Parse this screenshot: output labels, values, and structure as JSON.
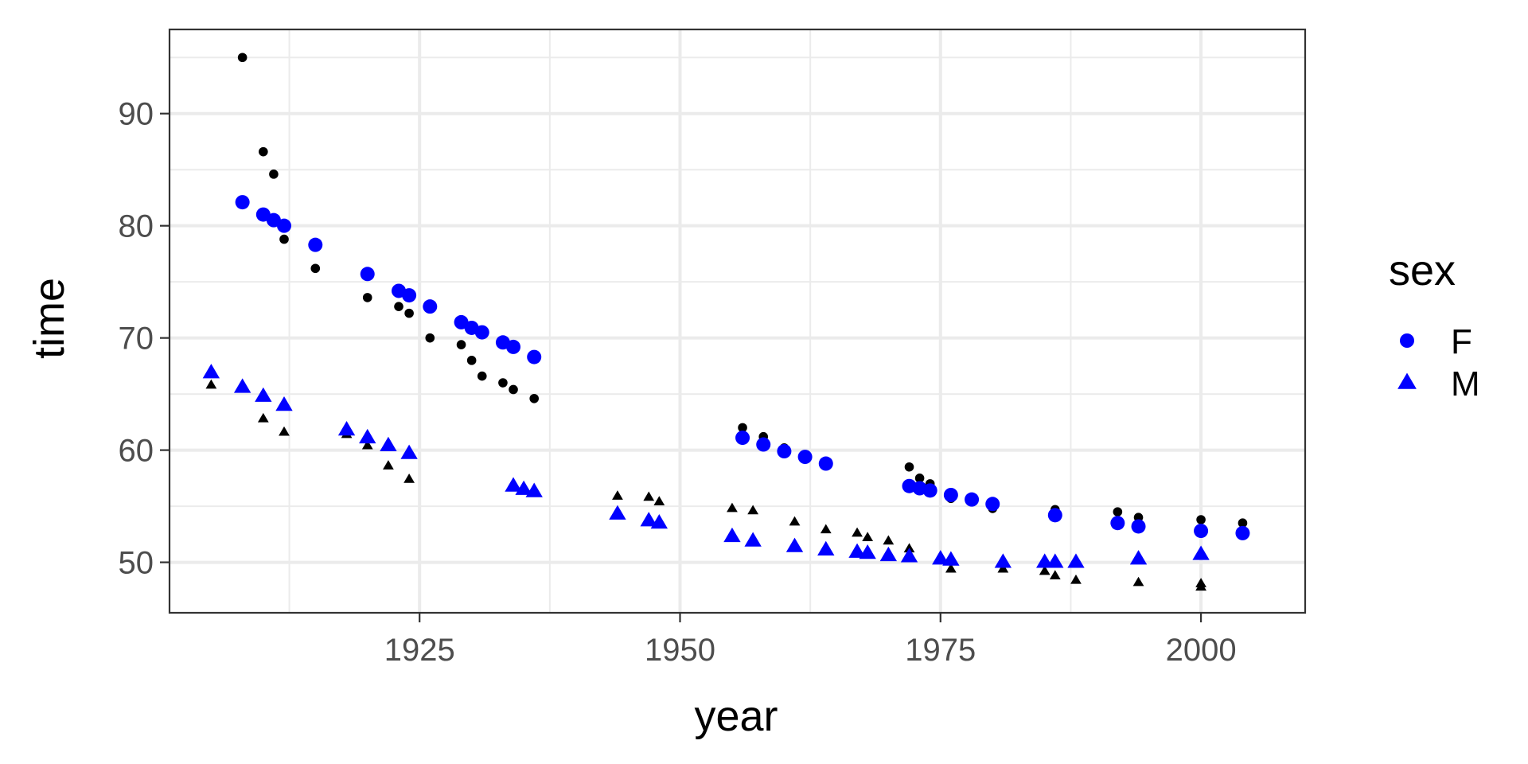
{
  "chart_data": {
    "type": "scatter",
    "xlabel": "year",
    "ylabel": "time",
    "xlim": [
      1901,
      2010
    ],
    "ylim": [
      45.5,
      97.5
    ],
    "x_ticks": [
      1925,
      1950,
      1975,
      2000
    ],
    "y_ticks": [
      50,
      60,
      70,
      80,
      90
    ],
    "grid": true,
    "legend": {
      "title": "sex",
      "position": "right",
      "entries": [
        {
          "label": "F",
          "shape": "circle",
          "color": "#0000ff"
        },
        {
          "label": "M",
          "shape": "triangle",
          "color": "#0000ff"
        }
      ]
    },
    "series": [
      {
        "sex": "F",
        "layer": "observed",
        "shape": "circle",
        "color": "#000000",
        "points": [
          [
            1908,
            95.0
          ],
          [
            1910,
            86.6
          ],
          [
            1911,
            84.6
          ],
          [
            1912,
            78.8
          ],
          [
            1915,
            76.2
          ],
          [
            1920,
            73.6
          ],
          [
            1923,
            72.8
          ],
          [
            1924,
            72.2
          ],
          [
            1926,
            70.0
          ],
          [
            1929,
            69.4
          ],
          [
            1930,
            68.0
          ],
          [
            1931,
            66.6
          ],
          [
            1933,
            66.0
          ],
          [
            1934,
            65.4
          ],
          [
            1936,
            64.6
          ],
          [
            1956,
            62.0
          ],
          [
            1958,
            61.2
          ],
          [
            1960,
            60.2
          ],
          [
            1962,
            59.5
          ],
          [
            1964,
            59.0
          ],
          [
            1972,
            58.5
          ],
          [
            1973,
            57.5
          ],
          [
            1974,
            57.0
          ],
          [
            1976,
            55.7
          ],
          [
            1978,
            55.6
          ],
          [
            1980,
            54.8
          ],
          [
            1986,
            54.7
          ],
          [
            1992,
            54.5
          ],
          [
            1994,
            54.0
          ],
          [
            2000,
            53.8
          ],
          [
            2004,
            53.5
          ]
        ]
      },
      {
        "sex": "F",
        "layer": "fitted",
        "shape": "circle",
        "color": "#0000ff",
        "points": [
          [
            1908,
            82.1
          ],
          [
            1910,
            81.0
          ],
          [
            1911,
            80.5
          ],
          [
            1912,
            80.0
          ],
          [
            1915,
            78.3
          ],
          [
            1920,
            75.7
          ],
          [
            1923,
            74.2
          ],
          [
            1924,
            73.8
          ],
          [
            1926,
            72.8
          ],
          [
            1929,
            71.4
          ],
          [
            1930,
            70.9
          ],
          [
            1931,
            70.5
          ],
          [
            1933,
            69.6
          ],
          [
            1934,
            69.2
          ],
          [
            1936,
            68.3
          ],
          [
            1956,
            61.1
          ],
          [
            1958,
            60.5
          ],
          [
            1960,
            59.9
          ],
          [
            1962,
            59.4
          ],
          [
            1964,
            58.8
          ],
          [
            1972,
            56.8
          ],
          [
            1973,
            56.6
          ],
          [
            1974,
            56.4
          ],
          [
            1976,
            56.0
          ],
          [
            1978,
            55.6
          ],
          [
            1980,
            55.2
          ],
          [
            1986,
            54.2
          ],
          [
            1992,
            53.5
          ],
          [
            1994,
            53.2
          ],
          [
            2000,
            52.8
          ],
          [
            2004,
            52.6
          ]
        ]
      },
      {
        "sex": "M",
        "layer": "observed",
        "shape": "triangle",
        "color": "#000000",
        "points": [
          [
            1905,
            65.8
          ],
          [
            1910,
            62.8
          ],
          [
            1912,
            61.6
          ],
          [
            1918,
            61.4
          ],
          [
            1920,
            60.4
          ],
          [
            1922,
            58.6
          ],
          [
            1924,
            57.4
          ],
          [
            1934,
            56.8
          ],
          [
            1935,
            56.6
          ],
          [
            1936,
            56.4
          ],
          [
            1944,
            55.9
          ],
          [
            1947,
            55.8
          ],
          [
            1948,
            55.4
          ],
          [
            1955,
            54.8
          ],
          [
            1957,
            54.6
          ],
          [
            1961,
            53.6
          ],
          [
            1964,
            52.9
          ],
          [
            1967,
            52.6
          ],
          [
            1968,
            52.2
          ],
          [
            1970,
            51.9
          ],
          [
            1972,
            51.2
          ],
          [
            1975,
            50.4
          ],
          [
            1976,
            49.4
          ],
          [
            1981,
            49.4
          ],
          [
            1985,
            49.2
          ],
          [
            1986,
            48.8
          ],
          [
            1988,
            48.4
          ],
          [
            1994,
            48.2
          ],
          [
            2000,
            48.1
          ],
          [
            2000,
            47.8
          ]
        ]
      },
      {
        "sex": "M",
        "layer": "fitted",
        "shape": "triangle",
        "color": "#0000ff",
        "points": [
          [
            1905,
            66.9
          ],
          [
            1908,
            65.6
          ],
          [
            1910,
            64.8
          ],
          [
            1912,
            64.0
          ],
          [
            1918,
            61.8
          ],
          [
            1920,
            61.1
          ],
          [
            1922,
            60.4
          ],
          [
            1924,
            59.7
          ],
          [
            1934,
            56.8
          ],
          [
            1935,
            56.5
          ],
          [
            1936,
            56.3
          ],
          [
            1944,
            54.3
          ],
          [
            1947,
            53.7
          ],
          [
            1948,
            53.5
          ],
          [
            1955,
            52.3
          ],
          [
            1957,
            51.9
          ],
          [
            1961,
            51.4
          ],
          [
            1964,
            51.1
          ],
          [
            1967,
            50.9
          ],
          [
            1968,
            50.8
          ],
          [
            1970,
            50.6
          ],
          [
            1972,
            50.5
          ],
          [
            1975,
            50.3
          ],
          [
            1976,
            50.2
          ],
          [
            1981,
            50.0
          ],
          [
            1985,
            50.0
          ],
          [
            1986,
            50.0
          ],
          [
            1988,
            50.0
          ],
          [
            1994,
            50.3
          ],
          [
            2000,
            50.7
          ]
        ]
      }
    ]
  }
}
